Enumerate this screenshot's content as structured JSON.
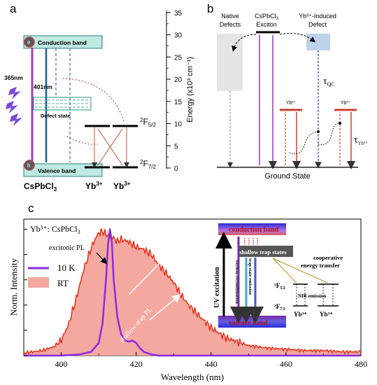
{
  "panel_a": {
    "label": "a",
    "conduction_band": "Conduction band",
    "valence_band": "Valence band",
    "defect_state": "Defect state",
    "electron": "e",
    "hole": "h",
    "excitation": "365nm",
    "emission": "401nm",
    "material": "CsPbCl",
    "material_sub": "3",
    "yb_label_1": "Yb",
    "yb_label_2": "Yb",
    "yb_sup": "3+",
    "f52": "F",
    "f52_pre": "2",
    "f52_sub": "5/2",
    "f72": "F",
    "f72_pre": "2",
    "f72_sub": "7/2",
    "axis_label": "Energy (x10³ cm⁻¹)",
    "axis_ticks": [
      "0",
      "5",
      "10",
      "15",
      "20",
      "25",
      "30",
      "35"
    ]
  },
  "panel_b": {
    "label": "b",
    "native_defects_1": "Native",
    "native_defects_2": "Defects",
    "exciton_1": "CsPbCl",
    "exciton_sub": "3",
    "exciton_2": "Exciton",
    "yb_defect_1": "Yb³⁺-Induced",
    "yb_defect_2": "Defect",
    "tau_qc": "τ",
    "tau_qc_sub": "QC",
    "tau_yb": "τ",
    "tau_yb_sub": "Yb³⁺",
    "yb_level_1": "Yb³⁺",
    "yb_level_2": "Yb³⁺",
    "ground": "Ground State"
  },
  "panel_c": {
    "label": "c",
    "title": "Yb³⁺: CsPbCl",
    "title_sub": "3",
    "excitonic_pl": "excitonic PL",
    "shallow_pl": "shallow-trap PL",
    "legend_10k": "10 K",
    "legend_rt": "RT",
    "ylabel": "Norm. Intensity",
    "xlabel": "Wavelength (nm)",
    "inset": {
      "conduction": "conduction band",
      "valence": "valence band",
      "shallow": "shallow trap states",
      "uv": "UV excitation",
      "exciton_recomb": "exciton recombination",
      "trap_state": "trap state emission",
      "cooperative_1": "cooperative",
      "cooperative_2": "energy transfer",
      "f52": "²F",
      "f52_sub": "5/2",
      "f72": "²F",
      "f72_sub": "7/2",
      "nir": "NIR emission",
      "yb1": "Yb³⁺",
      "yb2": "Yb³⁺"
    }
  },
  "chart_data": [
    {
      "type": "line",
      "title": "Yb³⁺: CsPbCl3",
      "xlabel": "Wavelength (nm)",
      "ylabel": "Norm. Intensity",
      "xlim": [
        390,
        480
      ],
      "ylim": [
        0,
        1.08
      ],
      "xticks": [
        400,
        420,
        440,
        460,
        480
      ],
      "legend": "top-left",
      "series": [
        {
          "name": "10 K",
          "color": "#8a2be2",
          "x": [
            390,
            400,
            405,
            408,
            410,
            411,
            412,
            412.5,
            413,
            413.5,
            414,
            415,
            416,
            417,
            418,
            419,
            420,
            421,
            422,
            424,
            426,
            430,
            440,
            450,
            460,
            470,
            480
          ],
          "y": [
            0.0,
            0.0,
            0.01,
            0.03,
            0.1,
            0.25,
            0.62,
            0.88,
            1.0,
            0.9,
            0.6,
            0.3,
            0.17,
            0.12,
            0.11,
            0.12,
            0.1,
            0.06,
            0.03,
            0.01,
            0.0,
            0.0,
            0.0,
            0.0,
            0.0,
            0.0,
            0.0
          ]
        },
        {
          "name": "RT",
          "color": "#e53018",
          "fill": "#f4a8a0",
          "x": [
            390,
            395,
            398,
            400,
            402,
            404,
            406,
            408,
            409,
            410,
            411,
            412,
            413,
            414,
            415,
            416,
            417,
            418,
            419,
            420,
            421,
            422,
            423,
            424,
            425,
            426,
            428,
            430,
            432,
            434,
            436,
            438,
            440,
            442,
            444,
            446,
            448,
            450,
            455,
            460,
            465,
            470,
            475,
            480
          ],
          "y": [
            0.02,
            0.04,
            0.07,
            0.12,
            0.25,
            0.45,
            0.68,
            0.85,
            0.92,
            0.97,
            0.98,
            0.96,
            0.94,
            0.93,
            0.9,
            0.92,
            0.91,
            0.9,
            0.88,
            0.86,
            0.85,
            0.84,
            0.82,
            0.8,
            0.76,
            0.72,
            0.65,
            0.58,
            0.48,
            0.4,
            0.34,
            0.28,
            0.22,
            0.18,
            0.14,
            0.12,
            0.1,
            0.08,
            0.06,
            0.05,
            0.04,
            0.04,
            0.03,
            0.03
          ]
        }
      ]
    }
  ]
}
